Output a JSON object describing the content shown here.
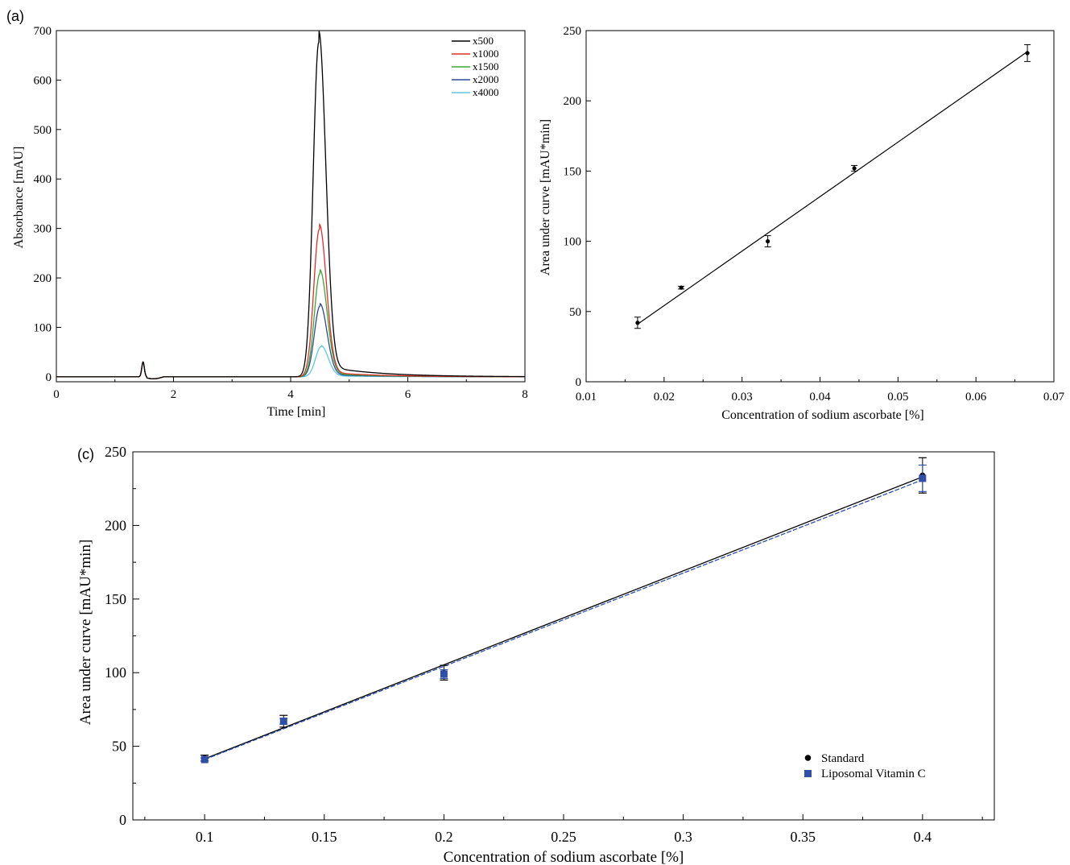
{
  "chart_data": [
    {
      "panel_label": "(a)",
      "type": "line",
      "xlabel": "Time [min]",
      "ylabel": "Absorbance [mAU]",
      "xlim": [
        0,
        8
      ],
      "ylim": [
        -10,
        700
      ],
      "xticks": [
        0,
        2,
        4,
        6,
        8
      ],
      "yticks": [
        0,
        100,
        200,
        300,
        400,
        500,
        600,
        700
      ],
      "grid": false,
      "legend_position": "top-right",
      "series": [
        {
          "name": "x500",
          "color": "#000000",
          "peak_time": 4.48,
          "peak_height": 676,
          "minor_peak_height": 30
        },
        {
          "name": "x1000",
          "color": "#e0302a",
          "peak_time": 4.49,
          "peak_height": 298,
          "minor_peak_height": 30
        },
        {
          "name": "x1500",
          "color": "#3aaa35",
          "peak_time": 4.5,
          "peak_height": 209,
          "minor_peak_height": 30
        },
        {
          "name": "x2000",
          "color": "#2e4a9a",
          "peak_time": 4.5,
          "peak_height": 143,
          "minor_peak_height": 30
        },
        {
          "name": "x4000",
          "color": "#5ac8e0",
          "peak_time": 4.52,
          "peak_height": 61,
          "minor_peak_height": 30
        }
      ]
    },
    {
      "panel_label": "",
      "type": "scatter",
      "xlabel": "Concentration of sodium ascorbate [%]",
      "ylabel": "Area under curve [mAU*min]",
      "xlim": [
        0.01,
        0.07
      ],
      "ylim": [
        0,
        250
      ],
      "xticks": [
        "0.01",
        "0.02",
        "0.03",
        "0.04",
        "0.05",
        "0.06",
        "0.07"
      ],
      "yticks": [
        0,
        50,
        100,
        150,
        200,
        250
      ],
      "grid": false,
      "points": [
        {
          "x": 0.0166,
          "y": 42,
          "err": 4
        },
        {
          "x": 0.0222,
          "y": 67,
          "err": 1
        },
        {
          "x": 0.0333,
          "y": 100,
          "err": 4
        },
        {
          "x": 0.0444,
          "y": 152,
          "err": 2
        },
        {
          "x": 0.0666,
          "y": 234,
          "err": 6
        }
      ],
      "fit_line": [
        [
          0.0166,
          41
        ],
        [
          0.0666,
          235
        ]
      ]
    },
    {
      "panel_label": "(c)",
      "type": "scatter",
      "xlabel": "Concentration of sodium ascorbate [%]",
      "ylabel": "Area under curve [mAU*min]",
      "xlim": [
        0.07,
        0.43
      ],
      "ylim": [
        0,
        250
      ],
      "xticks": [
        "0.1",
        "0.15",
        "0.2",
        "0.25",
        "0.3",
        "0.35",
        "0.4"
      ],
      "yticks": [
        0,
        50,
        100,
        150,
        200,
        250
      ],
      "grid": false,
      "legend_position": "bottom-right",
      "series": [
        {
          "name": "Standard",
          "color": "#000000",
          "marker": "circle",
          "points": [
            {
              "x": 0.1,
              "y": 42,
              "err": 2
            },
            {
              "x": 0.133,
              "y": 67,
              "err": 4
            },
            {
              "x": 0.2,
              "y": 100,
              "err": 5
            },
            {
              "x": 0.4,
              "y": 234,
              "err": 12
            }
          ],
          "fit_line": [
            [
              0.1,
              41.5
            ],
            [
              0.4,
              233
            ]
          ]
        },
        {
          "name": "Liposomal Vitamin C",
          "color": "#3050a8",
          "marker": "square",
          "points": [
            {
              "x": 0.1,
              "y": 41,
              "err": 1
            },
            {
              "x": 0.133,
              "y": 67,
              "err": 2
            },
            {
              "x": 0.2,
              "y": 99,
              "err": 3
            },
            {
              "x": 0.4,
              "y": 232,
              "err": 9
            }
          ],
          "fit_line": [
            [
              0.1,
              41
            ],
            [
              0.4,
              231
            ]
          ]
        }
      ]
    }
  ]
}
